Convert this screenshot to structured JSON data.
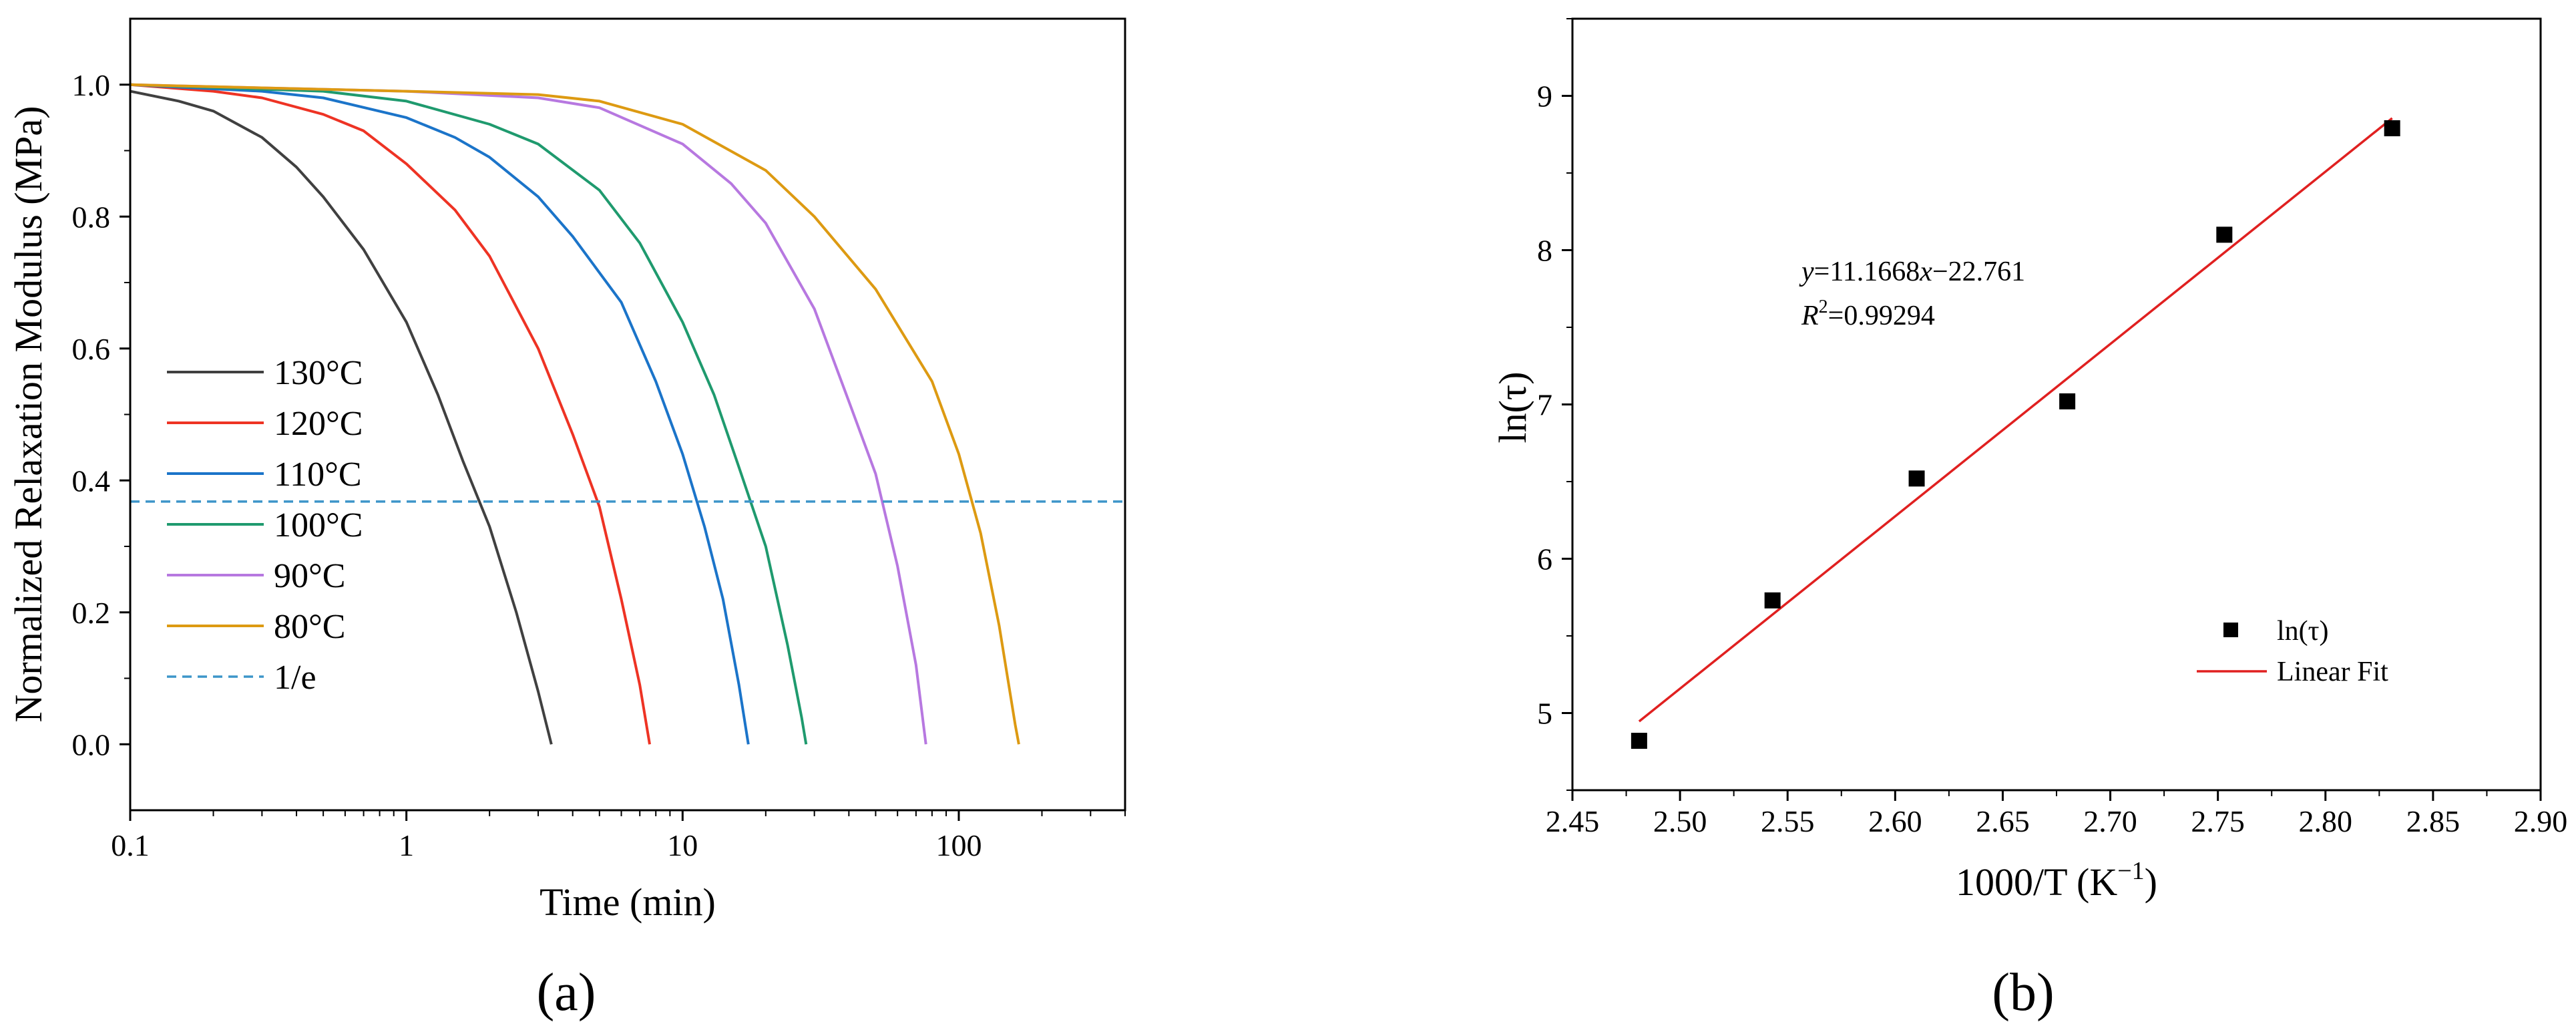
{
  "chart_data": [
    {
      "type": "line",
      "panel_label": "(a)",
      "xlabel": "Time (min)",
      "ylabel": "Normalized Relaxation Modulus (MPa)",
      "xscale": "log",
      "xlim": [
        0.1,
        400
      ],
      "ylim": [
        -0.1,
        1.1
      ],
      "xticks": [
        "0.1",
        "1",
        "10",
        "100"
      ],
      "yticks": [
        "0.0",
        "0.2",
        "0.4",
        "0.6",
        "0.8",
        "1.0"
      ],
      "grid": false,
      "legend_position": "left",
      "series": [
        {
          "name": "130°C",
          "color": "#404040",
          "style": "solid",
          "x": [
            0.1,
            0.15,
            0.2,
            0.3,
            0.4,
            0.5,
            0.7,
            1.0,
            1.3,
            1.6,
            2.0,
            2.5,
            3.0,
            3.35
          ],
          "y": [
            0.99,
            0.975,
            0.96,
            0.92,
            0.875,
            0.83,
            0.75,
            0.64,
            0.53,
            0.43,
            0.33,
            0.2,
            0.08,
            0.0
          ]
        },
        {
          "name": "120°C",
          "color": "#ee3324",
          "style": "solid",
          "x": [
            0.1,
            0.2,
            0.3,
            0.5,
            0.7,
            1.0,
            1.5,
            2.0,
            3.0,
            4.0,
            5.0,
            6.0,
            7.0,
            7.6
          ],
          "y": [
            1.0,
            0.99,
            0.98,
            0.955,
            0.93,
            0.88,
            0.81,
            0.74,
            0.6,
            0.47,
            0.36,
            0.22,
            0.09,
            0.0
          ]
        },
        {
          "name": "110°C",
          "color": "#1b74c9",
          "style": "solid",
          "x": [
            0.1,
            0.3,
            0.5,
            1.0,
            1.5,
            2.0,
            3.0,
            4.0,
            6.0,
            8.0,
            10.0,
            12.0,
            14.0,
            16.0,
            17.3
          ],
          "y": [
            1.0,
            0.99,
            0.98,
            0.95,
            0.92,
            0.89,
            0.83,
            0.77,
            0.67,
            0.55,
            0.44,
            0.33,
            0.22,
            0.09,
            0.0
          ]
        },
        {
          "name": "100°C",
          "color": "#1f9a6e",
          "style": "solid",
          "x": [
            0.1,
            0.5,
            1.0,
            2.0,
            3.0,
            5.0,
            7.0,
            10.0,
            13.0,
            16.0,
            20.0,
            24.0,
            27.0,
            28.0
          ],
          "y": [
            1.0,
            0.99,
            0.975,
            0.94,
            0.91,
            0.84,
            0.76,
            0.64,
            0.53,
            0.42,
            0.3,
            0.15,
            0.04,
            0.0
          ]
        },
        {
          "name": "90°C",
          "color": "#b778e0",
          "style": "solid",
          "x": [
            0.1,
            1.0,
            3.0,
            5.0,
            10.0,
            15.0,
            20.0,
            30.0,
            40.0,
            50.0,
            60.0,
            70.0,
            76.0
          ],
          "y": [
            1.0,
            0.99,
            0.98,
            0.965,
            0.91,
            0.85,
            0.79,
            0.66,
            0.52,
            0.41,
            0.27,
            0.12,
            0.0
          ]
        },
        {
          "name": "80°C",
          "color": "#dd9a12",
          "style": "solid",
          "x": [
            0.1,
            1.0,
            3.0,
            5.0,
            10.0,
            20.0,
            30.0,
            50.0,
            80.0,
            100.0,
            120.0,
            140.0,
            160.0,
            165.0
          ],
          "y": [
            1.0,
            0.99,
            0.985,
            0.975,
            0.94,
            0.87,
            0.8,
            0.69,
            0.55,
            0.44,
            0.32,
            0.18,
            0.03,
            0.0
          ]
        },
        {
          "name": "1/e",
          "color": "#3d95c9",
          "style": "dashed",
          "x": [
            0.1,
            400
          ],
          "y": [
            0.3679,
            0.3679
          ]
        }
      ]
    },
    {
      "type": "scatter",
      "panel_label": "(b)",
      "xlabel": "1000/T (K−1)",
      "xlabel_main": "1000/T (K",
      "xlabel_sup": "−1",
      "xlabel_end": ")",
      "ylabel": "ln(τ)",
      "xlim": [
        2.45,
        2.9
      ],
      "ylim": [
        4.5,
        9.5
      ],
      "xticks": [
        "2.45",
        "2.50",
        "2.55",
        "2.60",
        "2.65",
        "2.70",
        "2.75",
        "2.80",
        "2.85",
        "2.90"
      ],
      "yticks": [
        "5",
        "6",
        "7",
        "8",
        "9"
      ],
      "grid": false,
      "legend_position": "bottom-right",
      "series": [
        {
          "name": "ln(τ)",
          "color": "#000000",
          "marker": "square",
          "x": [
            2.481,
            2.543,
            2.61,
            2.68,
            2.753,
            2.831
          ],
          "y": [
            4.82,
            5.73,
            6.52,
            7.02,
            8.1,
            8.79
          ]
        },
        {
          "name": "Linear Fit",
          "color": "#e02020",
          "style": "solid",
          "x": [
            2.481,
            2.831
          ],
          "y": [
            4.946,
            8.855
          ]
        }
      ],
      "annotation": {
        "equation_prefix": "y",
        "equation_mid": "=11.1668",
        "equation_var": "x",
        "equation_end": "−22.761",
        "r2_prefix": "R",
        "r2_sup": "2",
        "r2_value": "=0.99294"
      }
    }
  ]
}
